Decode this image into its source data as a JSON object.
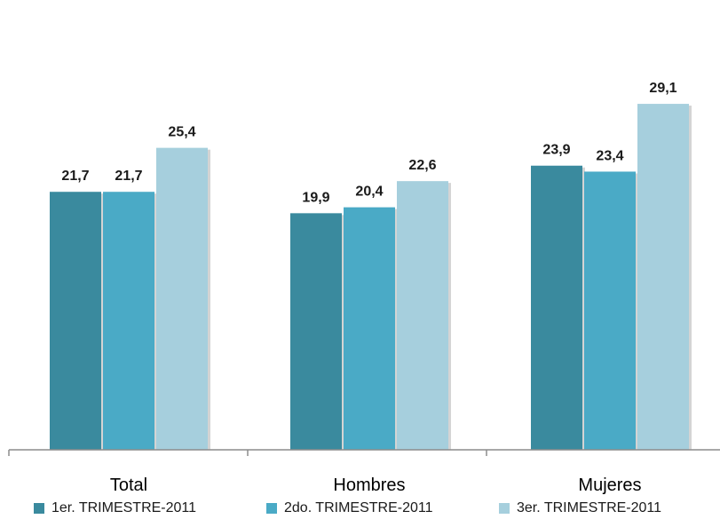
{
  "chart_data": {
    "type": "bar",
    "categories": [
      "Total",
      "Hombres",
      "Mujeres"
    ],
    "series": [
      {
        "name": "1er. TRIMESTRE-2011",
        "values": [
          21.7,
          19.9,
          23.9
        ],
        "labels": [
          "21,7",
          "19,9",
          "23,9"
        ],
        "color": "#3a8a9e"
      },
      {
        "name": "2do. TRIMESTRE-2011",
        "values": [
          21.7,
          20.4,
          23.4
        ],
        "labels": [
          "21,7",
          "20,4",
          "23,4"
        ],
        "color": "#4aaac6"
      },
      {
        "name": "3er. TRIMESTRE-2011",
        "values": [
          25.4,
          22.6,
          29.1
        ],
        "labels": [
          "25,4",
          "22,6",
          "29,1"
        ],
        "color": "#a6cfdd"
      }
    ],
    "ylim": [
      0,
      30
    ],
    "grid": false,
    "legend_position": "bottom"
  }
}
